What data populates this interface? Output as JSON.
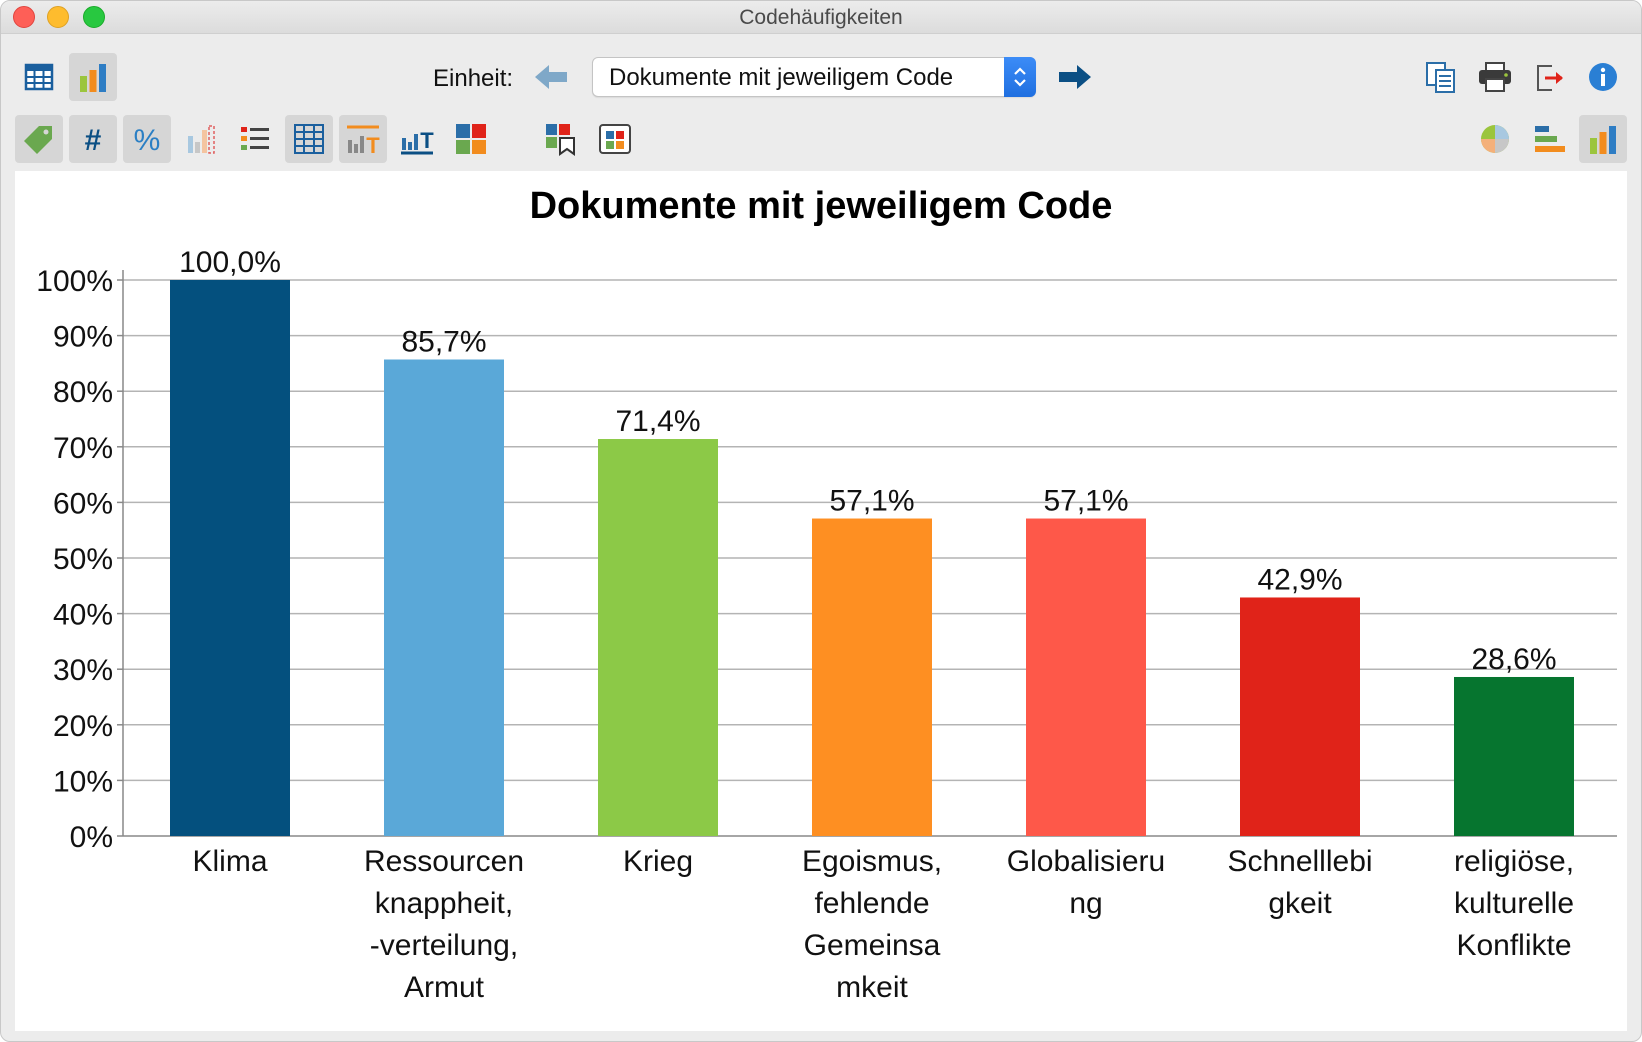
{
  "window": {
    "title": "Codehäufigkeiten"
  },
  "toolbar": {
    "unit_label": "Einheit:",
    "unit_value": "Dokumente mit jeweiligem Code",
    "row1_left": [
      "table-view-icon",
      "chart-view-icon"
    ],
    "row1_right": [
      "copy-icon",
      "print-icon",
      "export-icon",
      "info-icon"
    ],
    "row2_left": [
      "tag-icon",
      "hash-icon",
      "percent-icon",
      "bar-outline-icon",
      "list-icon",
      "grid-icon",
      "bar-text-icon",
      "bar-text-underline-icon",
      "color-squares-icon",
      "color-squares-bookmark-icon",
      "window-squares-icon"
    ],
    "row2_right": [
      "pie-chart-icon",
      "horizontal-bar-icon",
      "vertical-bar-icon"
    ]
  },
  "chart_data": {
    "type": "bar",
    "title": "Dokumente mit jeweiligem Code",
    "categories": [
      "Klima",
      "Ressourcen knappheit, -verteilung, Armut",
      "Krieg",
      "Egoismus, fehlende Gemeinsa mkeit",
      "Globalisieru ng",
      "Schnelllebi gkeit",
      "religiöse, kulturelle Konflikte"
    ],
    "category_lines": [
      [
        "Klima"
      ],
      [
        "Ressourcen",
        "knappheit,",
        "-verteilung,",
        "Armut"
      ],
      [
        "Krieg"
      ],
      [
        "Egoismus,",
        "fehlende",
        "Gemeinsa",
        "mkeit"
      ],
      [
        "Globalisieru",
        "ng"
      ],
      [
        "Schnelllebi",
        "gkeit"
      ],
      [
        "religiöse,",
        "kulturelle",
        "Konflikte"
      ]
    ],
    "values": [
      100.0,
      85.7,
      71.4,
      57.1,
      57.1,
      42.9,
      28.6
    ],
    "value_labels": [
      "100,0%",
      "85,7%",
      "71,4%",
      "57,1%",
      "57,1%",
      "42,9%",
      "28,6%"
    ],
    "colors": [
      "#04507e",
      "#5aa8d8",
      "#8cc947",
      "#fe8f22",
      "#fe5849",
      "#e02319",
      "#06752f"
    ],
    "ylim": [
      0,
      100
    ],
    "yticks": [
      "0%",
      "10%",
      "20%",
      "30%",
      "40%",
      "50%",
      "60%",
      "70%",
      "80%",
      "90%",
      "100%"
    ],
    "grid": true,
    "xlabel": "",
    "ylabel": ""
  }
}
